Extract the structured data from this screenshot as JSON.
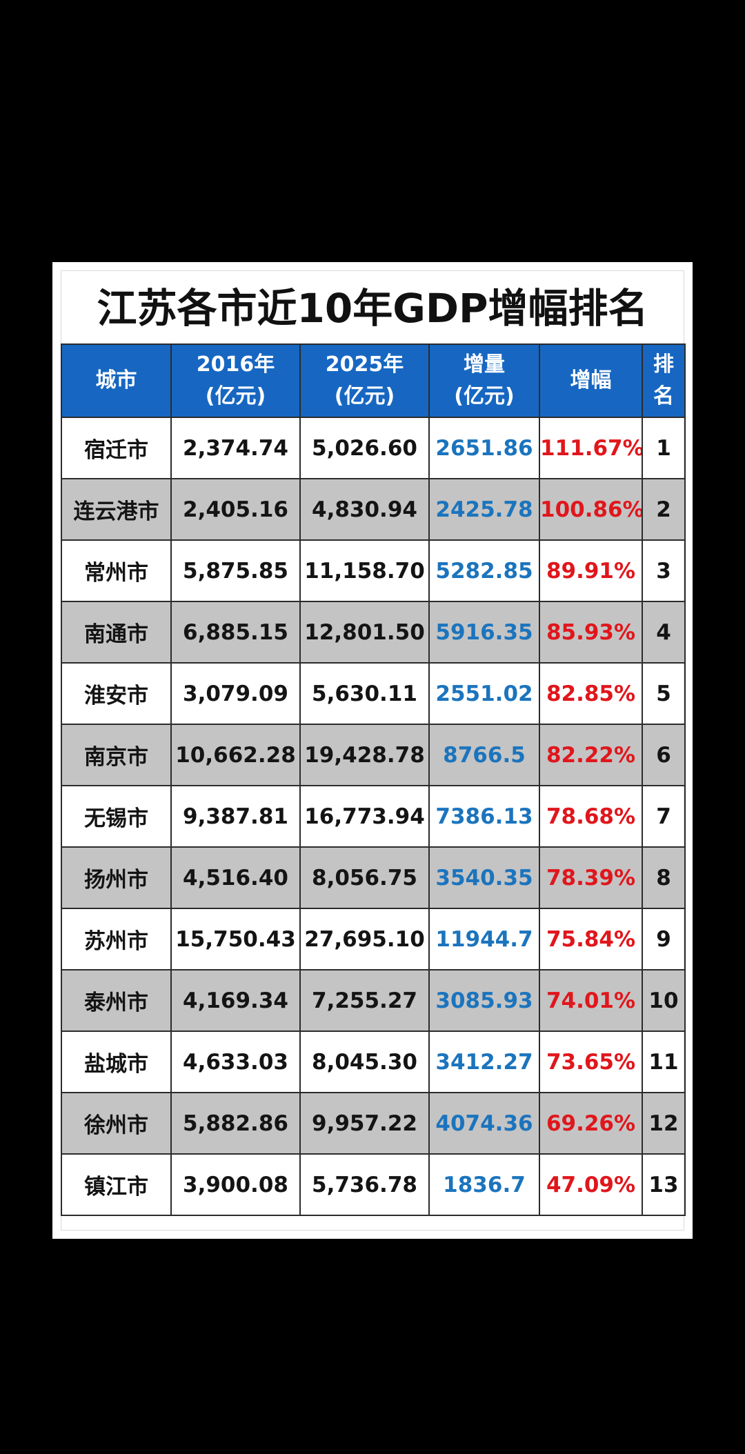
{
  "title": "江苏各市近10年GDP增幅排名",
  "headers": {
    "city": "城市",
    "y2016_line1": "2016年",
    "y2016_line2": "(亿元)",
    "y2025_line1": "2025年",
    "y2025_line2": "(亿元)",
    "increase_line1": "增量",
    "increase_line2": "(亿元)",
    "growth": "增幅",
    "rank_line1": "排",
    "rank_line2": "名"
  },
  "rows": [
    {
      "city": "宿迁市",
      "gdp2016": "2,374.74",
      "gdp2025": "5,026.60",
      "increase": "2651.86",
      "growth": "111.67%",
      "rank": "1"
    },
    {
      "city": "连云港市",
      "gdp2016": "2,405.16",
      "gdp2025": "4,830.94",
      "increase": "2425.78",
      "growth": "100.86%",
      "rank": "2"
    },
    {
      "city": "常州市",
      "gdp2016": "5,875.85",
      "gdp2025": "11,158.70",
      "increase": "5282.85",
      "growth": "89.91%",
      "rank": "3"
    },
    {
      "city": "南通市",
      "gdp2016": "6,885.15",
      "gdp2025": "12,801.50",
      "increase": "5916.35",
      "growth": "85.93%",
      "rank": "4"
    },
    {
      "city": "淮安市",
      "gdp2016": "3,079.09",
      "gdp2025": "5,630.11",
      "increase": "2551.02",
      "growth": "82.85%",
      "rank": "5"
    },
    {
      "city": "南京市",
      "gdp2016": "10,662.28",
      "gdp2025": "19,428.78",
      "increase": "8766.5",
      "growth": "82.22%",
      "rank": "6"
    },
    {
      "city": "无锡市",
      "gdp2016": "9,387.81",
      "gdp2025": "16,773.94",
      "increase": "7386.13",
      "growth": "78.68%",
      "rank": "7"
    },
    {
      "city": "扬州市",
      "gdp2016": "4,516.40",
      "gdp2025": "8,056.75",
      "increase": "3540.35",
      "growth": "78.39%",
      "rank": "8"
    },
    {
      "city": "苏州市",
      "gdp2016": "15,750.43",
      "gdp2025": "27,695.10",
      "increase": "11944.7",
      "growth": "75.84%",
      "rank": "9"
    },
    {
      "city": "泰州市",
      "gdp2016": "4,169.34",
      "gdp2025": "7,255.27",
      "increase": "3085.93",
      "growth": "74.01%",
      "rank": "10"
    },
    {
      "city": "盐城市",
      "gdp2016": "4,633.03",
      "gdp2025": "8,045.30",
      "increase": "3412.27",
      "growth": "73.65%",
      "rank": "11"
    },
    {
      "city": "徐州市",
      "gdp2016": "5,882.86",
      "gdp2025": "9,957.22",
      "increase": "4074.36",
      "growth": "69.26%",
      "rank": "12"
    },
    {
      "city": "镇江市",
      "gdp2016": "3,900.08",
      "gdp2025": "5,736.78",
      "increase": "1836.7",
      "growth": "47.09%",
      "rank": "13"
    }
  ],
  "colors": {
    "header_bg": "#1767c2",
    "increase_text": "#1b74bd",
    "growth_text": "#e0161c",
    "alt_row_bg": "#c4c4c4"
  }
}
